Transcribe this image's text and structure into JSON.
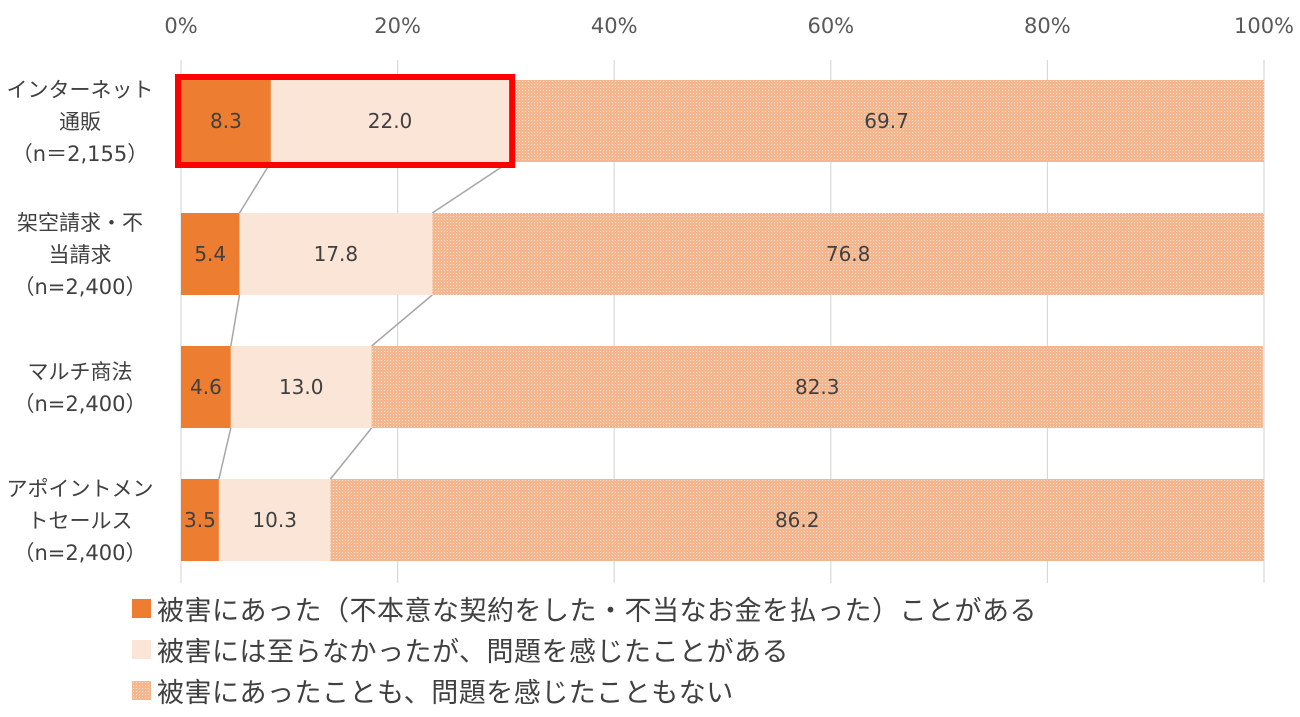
{
  "chart_data": {
    "type": "bar",
    "orientation": "horizontal",
    "stacked": true,
    "percent": true,
    "xlim": [
      0,
      100
    ],
    "x_ticks": [
      "0%",
      "20%",
      "40%",
      "60%",
      "80%",
      "100%"
    ],
    "grid": true,
    "legend_position": "bottom",
    "categories": [
      [
        "インターネット",
        "通販",
        "（n＝2,155）"
      ],
      [
        "架空請求・不",
        "当請求",
        "（n=2,400）"
      ],
      [
        "マルチ商法",
        "（n=2,400）"
      ],
      [
        "アポイントメン",
        "トセールス",
        "（n=2,400）"
      ]
    ],
    "series": [
      {
        "name": "被害にあった（不本意な契約をした・不当なお金を払った）ことがある",
        "color": "#ed7d31",
        "values": [
          8.3,
          5.4,
          4.6,
          3.5
        ]
      },
      {
        "name": "被害には至らなかったが、問題を感じたことがある",
        "color": "#fbe5d6",
        "values": [
          22.0,
          17.8,
          13.0,
          10.3
        ]
      },
      {
        "name": "被害にあったことも、問題を感じたこともない",
        "color": "#f4b183",
        "pattern": "dotted",
        "values": [
          69.7,
          76.8,
          82.3,
          86.2
        ]
      }
    ],
    "highlight": {
      "category_index": 0,
      "series_indices": [
        0,
        1
      ],
      "color": "#ff0000"
    }
  }
}
